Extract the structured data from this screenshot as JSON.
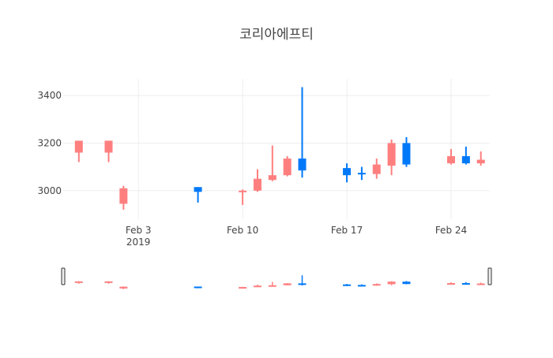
{
  "chart_data": {
    "type": "candlestick",
    "title": "코리아에프티",
    "x_tick_labels": [
      "Feb 3",
      "Feb 10",
      "Feb 17",
      "Feb 24"
    ],
    "x_tick_dates": [
      "2019-02-03",
      "2019-02-10",
      "2019-02-17",
      "2019-02-24"
    ],
    "x_year_label": "2019",
    "y_tick_labels": [
      "3000",
      "3200",
      "3400"
    ],
    "y_tick_values": [
      3000,
      3200,
      3400
    ],
    "xlim": [
      "2019-01-29",
      "2019-02-26"
    ],
    "ylim": [
      2880,
      3470
    ],
    "grid": true,
    "range_slider": true,
    "increasing_color": "#ff7f7f",
    "decreasing_color": "#0079f9",
    "candles": [
      {
        "date": "2019-01-30",
        "open": 3160,
        "high": 3210,
        "low": 3120,
        "close": 3210
      },
      {
        "date": "2019-02-01",
        "open": 3160,
        "high": 3210,
        "low": 3120,
        "close": 3210
      },
      {
        "date": "2019-02-02",
        "open": 2945,
        "high": 3020,
        "low": 2920,
        "close": 3010
      },
      {
        "date": "2019-02-07",
        "open": 3015,
        "high": 3015,
        "low": 2950,
        "close": 2995
      },
      {
        "date": "2019-02-10",
        "open": 2995,
        "high": 3005,
        "low": 2940,
        "close": 3000
      },
      {
        "date": "2019-02-11",
        "open": 3000,
        "high": 3090,
        "low": 2995,
        "close": 3050
      },
      {
        "date": "2019-02-12",
        "open": 3045,
        "high": 3190,
        "low": 3040,
        "close": 3065
      },
      {
        "date": "2019-02-13",
        "open": 3065,
        "high": 3145,
        "low": 3060,
        "close": 3135
      },
      {
        "date": "2019-02-14",
        "open": 3135,
        "high": 3435,
        "low": 3055,
        "close": 3085
      },
      {
        "date": "2019-02-17",
        "open": 3095,
        "high": 3115,
        "low": 3035,
        "close": 3065
      },
      {
        "date": "2019-02-18",
        "open": 3075,
        "high": 3100,
        "low": 3045,
        "close": 3070
      },
      {
        "date": "2019-02-19",
        "open": 3070,
        "high": 3135,
        "low": 3050,
        "close": 3110
      },
      {
        "date": "2019-02-20",
        "open": 3105,
        "high": 3215,
        "low": 3065,
        "close": 3200
      },
      {
        "date": "2019-02-21",
        "open": 3200,
        "high": 3225,
        "low": 3100,
        "close": 3110
      },
      {
        "date": "2019-02-24",
        "open": 3115,
        "high": 3175,
        "low": 3110,
        "close": 3145
      },
      {
        "date": "2019-02-25",
        "open": 3145,
        "high": 3185,
        "low": 3110,
        "close": 3115
      },
      {
        "date": "2019-02-26",
        "open": 3115,
        "high": 3165,
        "low": 3105,
        "close": 3130
      }
    ]
  }
}
